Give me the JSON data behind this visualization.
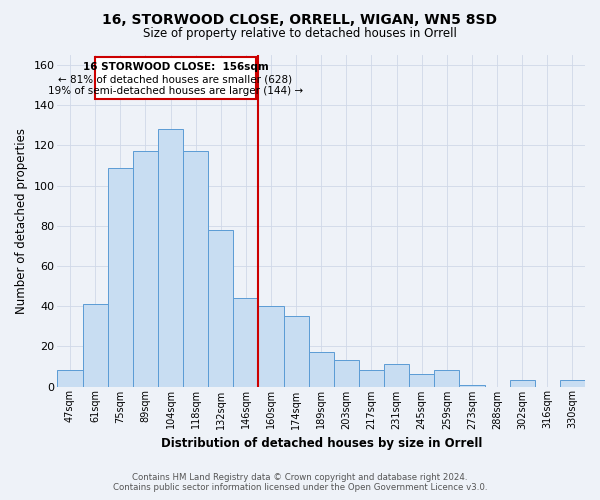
{
  "title": "16, STORWOOD CLOSE, ORRELL, WIGAN, WN5 8SD",
  "subtitle": "Size of property relative to detached houses in Orrell",
  "xlabel": "Distribution of detached houses by size in Orrell",
  "ylabel": "Number of detached properties",
  "footer_line1": "Contains HM Land Registry data © Crown copyright and database right 2024.",
  "footer_line2": "Contains public sector information licensed under the Open Government Licence v3.0.",
  "bar_labels": [
    "47sqm",
    "61sqm",
    "75sqm",
    "89sqm",
    "104sqm",
    "118sqm",
    "132sqm",
    "146sqm",
    "160sqm",
    "174sqm",
    "189sqm",
    "203sqm",
    "217sqm",
    "231sqm",
    "245sqm",
    "259sqm",
    "273sqm",
    "288sqm",
    "302sqm",
    "316sqm",
    "330sqm"
  ],
  "bar_values": [
    8,
    41,
    109,
    117,
    128,
    117,
    78,
    44,
    40,
    35,
    17,
    13,
    8,
    11,
    6,
    8,
    1,
    0,
    3,
    0,
    3
  ],
  "bar_color": "#c8ddf2",
  "bar_edge_color": "#5b9bd5",
  "grid_color": "#d0d8e8",
  "vline_color": "#cc0000",
  "annotation_text_line1": "16 STORWOOD CLOSE:  156sqm",
  "annotation_text_line2": "← 81% of detached houses are smaller (628)",
  "annotation_text_line3": "19% of semi-detached houses are larger (144) →",
  "annotation_box_color": "#ffffff",
  "annotation_box_edge": "#cc0000",
  "ylim": [
    0,
    165
  ],
  "yticks": [
    0,
    20,
    40,
    60,
    80,
    100,
    120,
    140,
    160
  ],
  "background_color": "#eef2f8"
}
